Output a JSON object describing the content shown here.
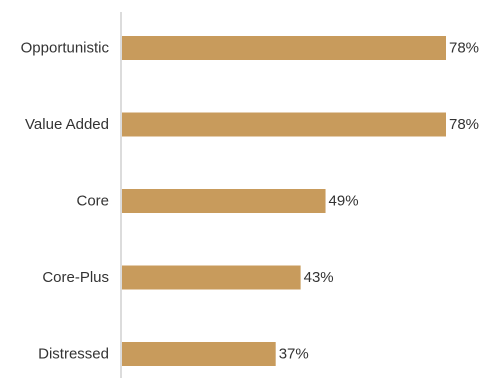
{
  "chart_data": {
    "type": "bar",
    "orientation": "horizontal",
    "categories": [
      "Opportunistic",
      "Value Added",
      "Core",
      "Core-Plus",
      "Distressed"
    ],
    "values": [
      78,
      78,
      49,
      43,
      37
    ],
    "value_labels": [
      "78%",
      "78%",
      "49%",
      "43%",
      "37%"
    ],
    "xlim": [
      0,
      100
    ],
    "title": "",
    "xlabel": "",
    "ylabel": "",
    "grid": false,
    "legend": "none",
    "bar_color": "#C89B5C",
    "axis_color": "#D0D0D0"
  }
}
